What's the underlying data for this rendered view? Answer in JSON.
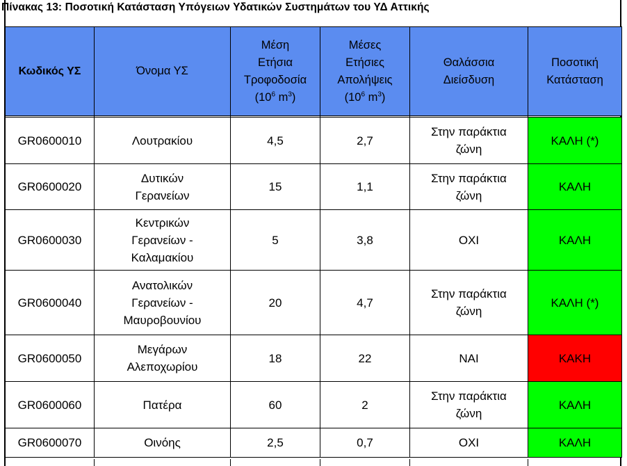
{
  "caption": "Πίνακας 13: Ποσοτική Κατάσταση Υπόγειων Υδατικών Συστημάτων του ΥΔ Αττικής",
  "headers": {
    "code": "Κωδικός ΥΣ",
    "name": "Όνομα ΥΣ",
    "recharge": {
      "l1": "Μέση",
      "l2": "Ετήσια",
      "l3": "Τροφοδοσία",
      "unit_open": "(10",
      "exp": "6",
      "unit_mid": " m",
      "exp2": "3",
      "unit_close": ")"
    },
    "abstraction": {
      "l1": "Μέσες",
      "l2": "Ετήσιες",
      "l3": "Απολήψεις",
      "unit_open": "(10",
      "exp": "6",
      "unit_mid": " m",
      "exp2": "3",
      "unit_close": ")"
    },
    "intrusion": {
      "l1": "Θαλάσσια",
      "l2": "Διείσδυση"
    },
    "status": {
      "l1": "Ποσοτική",
      "l2": "Κατάσταση"
    }
  },
  "rows": [
    {
      "code": "GR0600010",
      "name": [
        "Λουτρακίου"
      ],
      "recharge": "4,5",
      "abstraction": "2,7",
      "intrusion": [
        "Στην παράκτια",
        "ζώνη"
      ],
      "status": "ΚΑΛΗ (*)",
      "good": true
    },
    {
      "code": "GR0600020",
      "name": [
        "Δυτικών",
        "Γερανείων"
      ],
      "recharge": "15",
      "abstraction": "1,1",
      "intrusion": [
        "Στην παράκτια",
        "ζώνη"
      ],
      "status": "ΚΑΛΗ",
      "good": true
    },
    {
      "code": "GR0600030",
      "name": [
        "Κεντρικών",
        "Γερανείων -",
        "Καλαμακίου"
      ],
      "recharge": "5",
      "abstraction": "3,8",
      "intrusion": [
        "ΟΧΙ"
      ],
      "status": "ΚΑΛΗ",
      "good": true
    },
    {
      "code": "GR0600040",
      "name": [
        "Ανατολικών",
        "Γερανείων -",
        "Μαυροβουνίου"
      ],
      "recharge": "20",
      "abstraction": "4,7",
      "intrusion": [
        "Στην παράκτια",
        "ζώνη"
      ],
      "status": "ΚΑΛΗ (*)",
      "good": true
    },
    {
      "code": "GR0600050",
      "name": [
        "Μεγάρων",
        "Αλεποχωρίου"
      ],
      "recharge": "18",
      "abstraction": "22",
      "intrusion": [
        "ΝΑΙ"
      ],
      "status": "ΚΑΚΗ",
      "good": false
    },
    {
      "code": "GR0600060",
      "name": [
        "Πατέρα"
      ],
      "recharge": "60",
      "abstraction": "2",
      "intrusion": [
        "Στην παράκτια",
        "ζώνη"
      ],
      "status": "ΚΑΛΗ",
      "good": true
    },
    {
      "code": "GR0600070",
      "name": [
        "Οινόης"
      ],
      "recharge": "2,5",
      "abstraction": "0,7",
      "intrusion": [
        "ΟΧΙ"
      ],
      "status": "ΚΑΛΗ",
      "good": true
    }
  ],
  "colors": {
    "header": "#5b8cf0",
    "good": "#00ff00",
    "bad": "#ff0000"
  }
}
